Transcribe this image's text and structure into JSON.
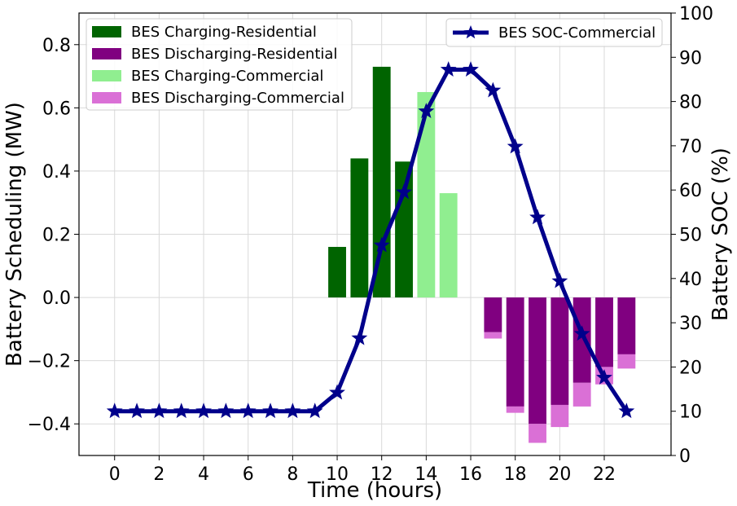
{
  "chart_data": {
    "type": "bar",
    "xlabel": "Time (hours)",
    "ylabel_left": "Battery Scheduling (MW)",
    "ylabel_right": "Battery SOC (%)",
    "x": [
      0,
      1,
      2,
      3,
      4,
      5,
      6,
      7,
      8,
      9,
      10,
      11,
      12,
      13,
      14,
      15,
      16,
      17,
      18,
      19,
      20,
      21,
      22,
      23
    ],
    "xticks": [
      "0",
      "2",
      "4",
      "6",
      "8",
      "10",
      "12",
      "14",
      "16",
      "18",
      "20",
      "22"
    ],
    "xlim": [
      -1.6,
      25
    ],
    "ylim_left": [
      -0.5,
      0.9
    ],
    "yticks_left": [
      "−0.4",
      "−0.2",
      "0.0",
      "0.2",
      "0.4",
      "0.6",
      "0.8"
    ],
    "ylim_right": [
      0,
      100
    ],
    "yticks_right": [
      "0",
      "10",
      "20",
      "30",
      "40",
      "50",
      "60",
      "70",
      "80",
      "90",
      "100"
    ],
    "grid": true,
    "bar_series": [
      {
        "name": "BES Charging-Residential",
        "color": "#006400",
        "values": [
          0,
          0,
          0,
          0,
          0,
          0,
          0,
          0,
          0,
          0,
          0.16,
          0.44,
          0.73,
          0.43,
          0,
          0,
          0,
          0,
          0,
          0,
          0,
          0,
          0,
          0
        ]
      },
      {
        "name": "BES Discharging-Residential",
        "color": "#800080",
        "values": [
          0,
          0,
          0,
          0,
          0,
          0,
          0,
          0,
          0,
          0,
          0,
          0,
          0,
          0,
          0,
          0,
          0,
          -0.11,
          -0.345,
          -0.4,
          -0.34,
          -0.27,
          -0.22,
          -0.18
        ]
      },
      {
        "name": "BES Charging-Commercial",
        "color": "#90EE90",
        "values": [
          0,
          0,
          0,
          0,
          0,
          0,
          0,
          0,
          0,
          0,
          0,
          0,
          0,
          0,
          0.65,
          0.33,
          0,
          0,
          0,
          0,
          0,
          0,
          0,
          0
        ]
      },
      {
        "name": "BES Discharging-Commercial",
        "color": "#DA70D6",
        "base": [
          0,
          0,
          0,
          0,
          0,
          0,
          0,
          0,
          0,
          0,
          0,
          0,
          0,
          0,
          0,
          0,
          0,
          -0.11,
          -0.345,
          -0.4,
          -0.34,
          -0.27,
          -0.22,
          -0.18
        ],
        "values": [
          0,
          0,
          0,
          0,
          0,
          0,
          0,
          0,
          0,
          0,
          0,
          0,
          0,
          0,
          0,
          0,
          0,
          -0.02,
          -0.02,
          -0.06,
          -0.07,
          -0.075,
          -0.055,
          -0.045
        ]
      }
    ],
    "line_series": {
      "name": "BES SOC-Commercial",
      "color": "#00008B",
      "marker": "star",
      "axis": "right",
      "values": [
        10,
        10,
        10,
        10,
        10,
        10,
        10,
        10,
        10,
        10,
        14.2,
        26.5,
        47.5,
        59.5,
        77.8,
        87.2,
        87.2,
        82.5,
        69.8,
        53.8,
        39.4,
        27.5,
        17.6,
        10
      ]
    },
    "legend_left_position": "upper-left",
    "legend_right_position": "upper-right"
  }
}
